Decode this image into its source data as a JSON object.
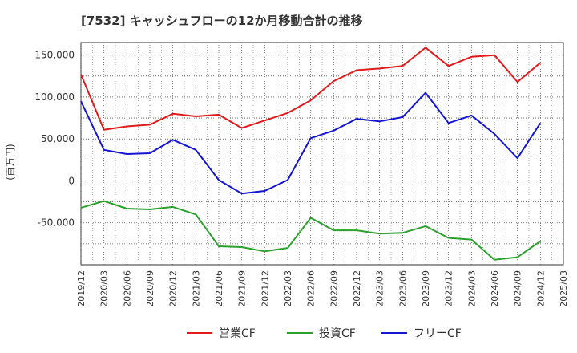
{
  "chart_data": {
    "type": "line",
    "title": "[7532]  キャッシュフローの12か月移動合計の推移",
    "ylabel": "(百万円)",
    "xlabel": "",
    "ylim": [
      -100000,
      165000
    ],
    "yticks": [
      150000,
      100000,
      50000,
      0,
      -50000
    ],
    "ytick_labels": [
      "150,000",
      "100,000",
      "50,000",
      "0",
      "-50,000"
    ],
    "x": [
      "2019/12",
      "2020/03",
      "2020/06",
      "2020/09",
      "2020/12",
      "2021/03",
      "2021/06",
      "2021/09",
      "2021/12",
      "2022/03",
      "2022/06",
      "2022/09",
      "2022/12",
      "2023/03",
      "2023/06",
      "2023/09",
      "2023/12",
      "2024/03",
      "2024/06",
      "2024/09",
      "2024/12",
      "2025/03"
    ],
    "grid": true,
    "legend_position": "bottom",
    "series": [
      {
        "name": "営業CF",
        "color": "#e31a1c",
        "values": [
          127000,
          61000,
          65000,
          67000,
          80000,
          77000,
          79000,
          63000,
          72000,
          81000,
          96000,
          119000,
          132000,
          134000,
          137000,
          159000,
          137000,
          148000,
          150000,
          118000,
          141000,
          null
        ]
      },
      {
        "name": "投資CF",
        "color": "#2ca02c",
        "values": [
          -32000,
          -24000,
          -33000,
          -34000,
          -31000,
          -40000,
          -78000,
          -79000,
          -84000,
          -80000,
          -44000,
          -59000,
          -59000,
          -63000,
          -62000,
          -54000,
          -68000,
          -70000,
          -94000,
          -91000,
          -72000,
          null
        ]
      },
      {
        "name": "フリーCF",
        "color": "#1414d4",
        "values": [
          95000,
          37000,
          32000,
          33000,
          49000,
          37000,
          1000,
          -15000,
          -12000,
          1000,
          51000,
          60000,
          74000,
          71000,
          76000,
          105000,
          69000,
          78000,
          56000,
          27000,
          69000,
          null
        ]
      }
    ]
  }
}
